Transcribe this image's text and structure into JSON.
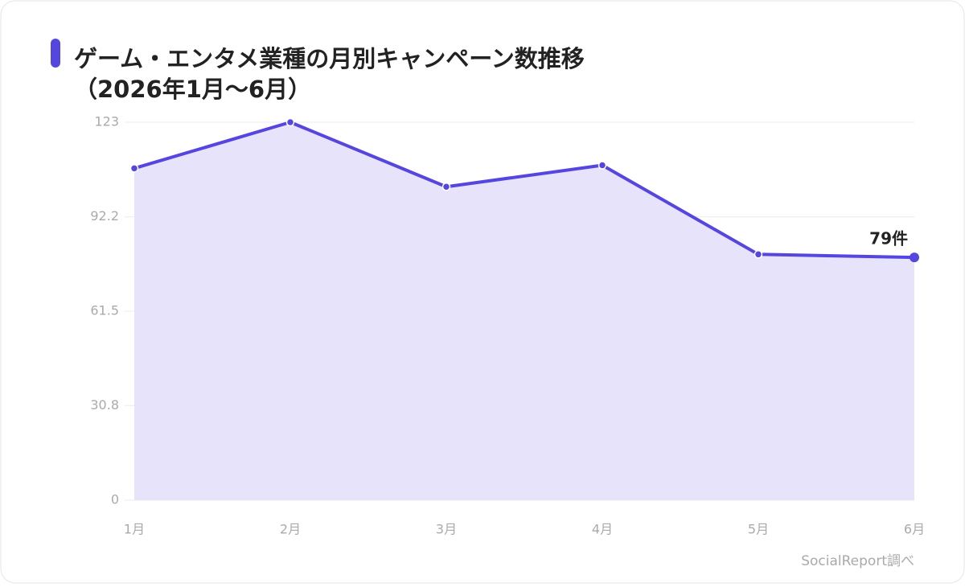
{
  "chart_data": {
    "type": "area",
    "title": "ゲーム・エンタメ業種の月別キャンペーン数推移",
    "subtitle": "（2026年1月〜6月）",
    "categories": [
      "1月",
      "2月",
      "3月",
      "4月",
      "5月",
      "6月"
    ],
    "values": [
      108,
      123,
      102,
      109,
      80,
      79
    ],
    "value_labels": [
      null,
      null,
      null,
      null,
      null,
      "79件"
    ],
    "color": "#5646e0",
    "ylim": [
      0,
      123
    ],
    "yticks": [
      0,
      30.8,
      61.5,
      92.2,
      123
    ],
    "grid": true,
    "source": "SocialReport調べ"
  }
}
